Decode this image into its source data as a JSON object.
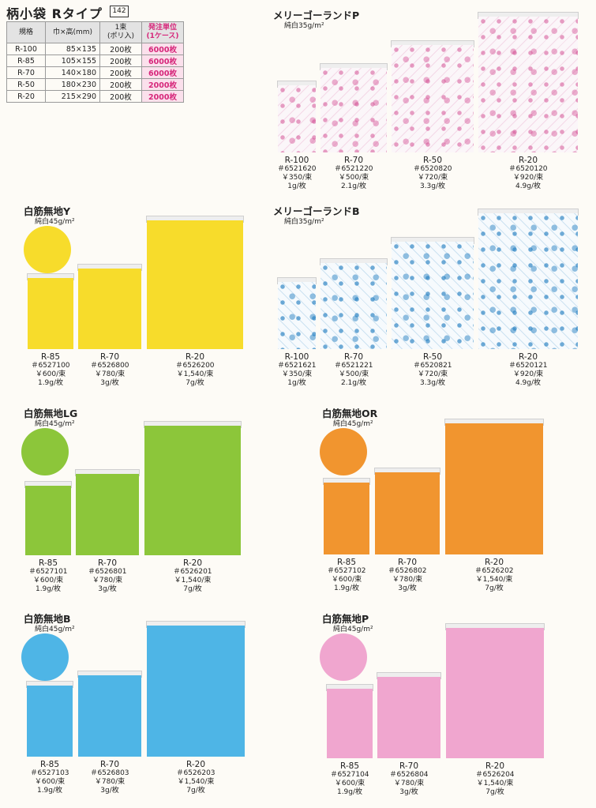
{
  "header": {
    "title": "柄小袋 Rタイプ",
    "page_badge": "142"
  },
  "spec_table": {
    "headers": [
      "規格",
      "巾×高(mm)",
      "1束\n(ポリ入)",
      "発注単位\n(1ケース)"
    ],
    "rows": [
      {
        "size": "R-100",
        "dims": "85×135",
        "pack": "200枚",
        "unit": "6000枚"
      },
      {
        "size": "R-85",
        "dims": "105×155",
        "pack": "200枚",
        "unit": "6000枚"
      },
      {
        "size": "R-70",
        "dims": "140×180",
        "pack": "200枚",
        "unit": "6000枚"
      },
      {
        "size": "R-50",
        "dims": "180×230",
        "pack": "200枚",
        "unit": "2000枚"
      },
      {
        "size": "R-20",
        "dims": "215×290",
        "pack": "200枚",
        "unit": "2000枚"
      }
    ]
  },
  "colors": {
    "yellow": "#f7dc2b",
    "green": "#8cc63a",
    "orange": "#f1952f",
    "blue": "#4eb5e6",
    "pink": "#f0a6cf",
    "merry_pink": "#d45296",
    "merry_blue": "#2580c2",
    "highlight": "#d6267a"
  },
  "sections": {
    "merry_p": {
      "title": "メリーゴーランドP",
      "subtitle": "純白35g/m²",
      "pattern_color": "#d45296",
      "bags": [
        {
          "size": "R-100",
          "code": "＃6521620",
          "price": "￥350/束",
          "weight": "1g/枚"
        },
        {
          "size": "R-70",
          "code": "＃6521220",
          "price": "￥500/束",
          "weight": "2.1g/枚"
        },
        {
          "size": "R-50",
          "code": "＃6520820",
          "price": "￥720/束",
          "weight": "3.3g/枚"
        },
        {
          "size": "R-20",
          "code": "＃6520120",
          "price": "￥920/束",
          "weight": "4.9g/枚"
        }
      ]
    },
    "merry_b": {
      "title": "メリーゴーランドB",
      "subtitle": "純白35g/m²",
      "pattern_color": "#2580c2",
      "bags": [
        {
          "size": "R-100",
          "code": "＃6521621",
          "price": "￥350/束",
          "weight": "1g/枚"
        },
        {
          "size": "R-70",
          "code": "＃6521221",
          "price": "￥500/束",
          "weight": "2.1g/枚"
        },
        {
          "size": "R-50",
          "code": "＃6520821",
          "price": "￥720/束",
          "weight": "3.3g/枚"
        },
        {
          "size": "R-20",
          "code": "＃6520121",
          "price": "￥920/束",
          "weight": "4.9g/枚"
        }
      ]
    },
    "y": {
      "title": "白筋無地Y",
      "subtitle": "純白45g/m²",
      "color": "#f7dc2b",
      "bags": [
        {
          "size": "R-85",
          "code": "＃6527100",
          "price": "￥600/束",
          "weight": "1.9g/枚"
        },
        {
          "size": "R-70",
          "code": "＃6526800",
          "price": "￥780/束",
          "weight": "3g/枚"
        },
        {
          "size": "R-20",
          "code": "＃6526200",
          "price": "￥1,540/束",
          "weight": "7g/枚"
        }
      ]
    },
    "lg": {
      "title": "白筋無地LG",
      "subtitle": "純白45g/m²",
      "color": "#8cc63a",
      "bags": [
        {
          "size": "R-85",
          "code": "＃6527101",
          "price": "￥600/束",
          "weight": "1.9g/枚"
        },
        {
          "size": "R-70",
          "code": "＃6526801",
          "price": "￥780/束",
          "weight": "3g/枚"
        },
        {
          "size": "R-20",
          "code": "＃6526201",
          "price": "￥1,540/束",
          "weight": "7g/枚"
        }
      ]
    },
    "or": {
      "title": "白筋無地OR",
      "subtitle": "純白45g/m²",
      "color": "#f1952f",
      "bags": [
        {
          "size": "R-85",
          "code": "＃6527102",
          "price": "￥600/束",
          "weight": "1.9g/枚"
        },
        {
          "size": "R-70",
          "code": "＃6526802",
          "price": "￥780/束",
          "weight": "3g/枚"
        },
        {
          "size": "R-20",
          "code": "＃6526202",
          "price": "￥1,540/束",
          "weight": "7g/枚"
        }
      ]
    },
    "b": {
      "title": "白筋無地B",
      "subtitle": "純白45g/m²",
      "color": "#4eb5e6",
      "bags": [
        {
          "size": "R-85",
          "code": "＃6527103",
          "price": "￥600/束",
          "weight": "1.9g/枚"
        },
        {
          "size": "R-70",
          "code": "＃6526803",
          "price": "￥780/束",
          "weight": "3g/枚"
        },
        {
          "size": "R-20",
          "code": "＃6526203",
          "price": "￥1,540/束",
          "weight": "7g/枚"
        }
      ]
    },
    "p": {
      "title": "白筋無地P",
      "subtitle": "純白45g/m²",
      "color": "#f0a6cf",
      "bags": [
        {
          "size": "R-85",
          "code": "＃6527104",
          "price": "￥600/束",
          "weight": "1.9g/枚"
        },
        {
          "size": "R-70",
          "code": "＃6526804",
          "price": "￥780/束",
          "weight": "3g/枚"
        },
        {
          "size": "R-20",
          "code": "＃6526204",
          "price": "￥1,540/束",
          "weight": "7g/枚"
        }
      ]
    }
  }
}
